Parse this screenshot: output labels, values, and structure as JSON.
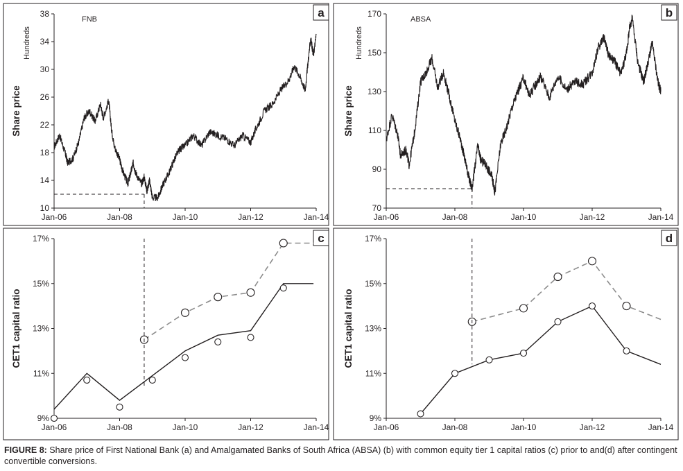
{
  "figure": {
    "caption_label": "FIGURE 8:",
    "caption_text": " Share price of First National Bank (a) and Amalgamated Banks of South Africa (ABSA) (b) with common equity tier 1 capital ratios (c) prior to and(d) after contingent convertible conversions."
  },
  "chart_data": [
    {
      "panel": "a",
      "type": "line",
      "annotation": "FNB",
      "ylabel": "Share price",
      "unit_label": "Hundreds",
      "x_ticks": [
        "Jan-06",
        "Jan-08",
        "Jan-10",
        "Jan-12",
        "Jan-14"
      ],
      "xlim": [
        "2006-01",
        "2014-01"
      ],
      "y_ticks": [
        10,
        14,
        18,
        22,
        26,
        30,
        34,
        38
      ],
      "ylim": [
        10,
        38
      ],
      "grid": false,
      "series": [
        {
          "values": [
            [
              "2006-01",
              18.8
            ],
            [
              "2006-03",
              20.5
            ],
            [
              "2006-05",
              18.0
            ],
            [
              "2006-06",
              16.5
            ],
            [
              "2006-08",
              17.2
            ],
            [
              "2006-10",
              19.5
            ],
            [
              "2006-12",
              23.0
            ],
            [
              "2007-02",
              24.0
            ],
            [
              "2007-04",
              22.5
            ],
            [
              "2007-06",
              25.0
            ],
            [
              "2007-07",
              23.0
            ],
            [
              "2007-09",
              25.5
            ],
            [
              "2007-10",
              21.5
            ],
            [
              "2007-11",
              19.0
            ],
            [
              "2008-01",
              17.0
            ],
            [
              "2008-02",
              15.5
            ],
            [
              "2008-04",
              13.5
            ],
            [
              "2008-05",
              15.0
            ],
            [
              "2008-06",
              16.5
            ],
            [
              "2008-07",
              15.0
            ],
            [
              "2008-09",
              13.5
            ],
            [
              "2008-10",
              14.5
            ],
            [
              "2008-11",
              12.5
            ],
            [
              "2008-12",
              14.0
            ],
            [
              "2009-01",
              11.5
            ],
            [
              "2009-03",
              11.5
            ],
            [
              "2009-05",
              13.5
            ],
            [
              "2009-07",
              15.0
            ],
            [
              "2009-09",
              17.0
            ],
            [
              "2009-11",
              18.5
            ],
            [
              "2010-01",
              19.0
            ],
            [
              "2010-04",
              20.5
            ],
            [
              "2010-07",
              19.0
            ],
            [
              "2010-10",
              21.0
            ],
            [
              "2011-01",
              20.5
            ],
            [
              "2011-04",
              20.0
            ],
            [
              "2011-07",
              19.0
            ],
            [
              "2011-10",
              20.5
            ],
            [
              "2012-01",
              19.5
            ],
            [
              "2012-03",
              21.5
            ],
            [
              "2012-06",
              24.0
            ],
            [
              "2012-09",
              25.0
            ],
            [
              "2012-12",
              27.0
            ],
            [
              "2013-03",
              28.5
            ],
            [
              "2013-05",
              30.5
            ],
            [
              "2013-07",
              29.0
            ],
            [
              "2013-09",
              27.0
            ],
            [
              "2013-10",
              31.0
            ],
            [
              "2013-11",
              34.5
            ],
            [
              "2013-12",
              32.0
            ],
            [
              "2014-01",
              35.0
            ]
          ]
        }
      ],
      "reference": {
        "x": "2008-10",
        "y": 12
      }
    },
    {
      "panel": "b",
      "type": "line",
      "annotation": "ABSA",
      "ylabel": "Share price",
      "unit_label": "Hundreds",
      "x_ticks": [
        "Jan-06",
        "Jan-08",
        "Jan-10",
        "Jan-12",
        "Jan-14"
      ],
      "xlim": [
        "2006-01",
        "2014-01"
      ],
      "y_ticks": [
        70,
        90,
        110,
        130,
        150,
        170
      ],
      "ylim": [
        70,
        170
      ],
      "grid": false,
      "series": [
        {
          "values": [
            [
              "2006-01",
              105
            ],
            [
              "2006-03",
              118
            ],
            [
              "2006-05",
              108
            ],
            [
              "2006-06",
              97
            ],
            [
              "2006-08",
              100
            ],
            [
              "2006-09",
              92
            ],
            [
              "2006-11",
              110
            ],
            [
              "2007-01",
              135
            ],
            [
              "2007-03",
              140
            ],
            [
              "2007-05",
              147
            ],
            [
              "2007-07",
              132
            ],
            [
              "2007-09",
              140
            ],
            [
              "2007-11",
              128
            ],
            [
              "2008-01",
              115
            ],
            [
              "2008-03",
              105
            ],
            [
              "2008-05",
              92
            ],
            [
              "2008-06",
              85
            ],
            [
              "2008-07",
              80
            ],
            [
              "2008-09",
              102
            ],
            [
              "2008-10",
              95
            ],
            [
              "2008-12",
              92
            ],
            [
              "2009-02",
              86
            ],
            [
              "2009-03",
              78
            ],
            [
              "2009-05",
              103
            ],
            [
              "2009-07",
              111
            ],
            [
              "2009-09",
              122
            ],
            [
              "2009-11",
              130
            ],
            [
              "2010-01",
              137
            ],
            [
              "2010-03",
              128
            ],
            [
              "2010-05",
              133
            ],
            [
              "2010-07",
              138
            ],
            [
              "2010-10",
              127
            ],
            [
              "2011-01",
              138
            ],
            [
              "2011-04",
              131
            ],
            [
              "2011-07",
              135
            ],
            [
              "2011-10",
              134
            ],
            [
              "2012-01",
              140
            ],
            [
              "2012-03",
              152
            ],
            [
              "2012-05",
              158
            ],
            [
              "2012-07",
              148
            ],
            [
              "2012-09",
              145
            ],
            [
              "2012-11",
              139
            ],
            [
              "2013-01",
              150
            ],
            [
              "2013-02",
              162
            ],
            [
              "2013-03",
              168
            ],
            [
              "2013-05",
              145
            ],
            [
              "2013-07",
              135
            ],
            [
              "2013-09",
              148
            ],
            [
              "2013-10",
              155
            ],
            [
              "2013-12",
              135
            ],
            [
              "2014-01",
              130
            ]
          ]
        }
      ],
      "reference": {
        "x": "2008-07",
        "y": 80
      }
    },
    {
      "panel": "c",
      "type": "line",
      "ylabel": "CET1 capital ratio",
      "x_ticks": [
        "Jan-06",
        "Jan-08",
        "Jan-10",
        "Jan-12",
        "Jan-14"
      ],
      "xlim": [
        "2006-01",
        "2014-01"
      ],
      "y_ticks": [
        "9%",
        "11%",
        "13%",
        "15%",
        "17%"
      ],
      "ylim": [
        9,
        17
      ],
      "grid": false,
      "series": [
        {
          "style": "solid-black",
          "values": [
            [
              "2006-01",
              9.4
            ],
            [
              "2007-01",
              11.0
            ],
            [
              "2008-01",
              9.8
            ],
            [
              "2010-01",
              12.0
            ],
            [
              "2011-01",
              12.7
            ],
            [
              "2012-01",
              12.9
            ],
            [
              "2013-01",
              15.0
            ],
            [
              "2013-12",
              15.0
            ]
          ]
        },
        {
          "style": "dashed-grey",
          "values": [
            [
              "2008-10",
              12.5
            ],
            [
              "2010-01",
              13.7
            ],
            [
              "2011-01",
              14.4
            ],
            [
              "2012-01",
              14.6
            ],
            [
              "2013-01",
              16.8
            ],
            [
              "2013-12",
              16.8
            ]
          ]
        },
        {
          "style": "points",
          "values": [
            [
              "2006-01",
              9.0
            ],
            [
              "2007-01",
              10.7
            ],
            [
              "2008-01",
              9.5
            ],
            [
              "2009-01",
              10.7
            ],
            [
              "2010-01",
              11.7
            ],
            [
              "2011-01",
              12.4
            ],
            [
              "2012-01",
              12.6
            ],
            [
              "2013-01",
              14.8
            ]
          ]
        },
        {
          "style": "points-on-dashed",
          "values": [
            [
              "2008-10",
              12.5
            ],
            [
              "2010-01",
              13.7
            ],
            [
              "2011-01",
              14.4
            ],
            [
              "2012-01",
              14.6
            ],
            [
              "2013-01",
              16.8
            ]
          ]
        }
      ],
      "reference": {
        "x": "2008-10",
        "y_from": 10.4,
        "y_to": 17
      }
    },
    {
      "panel": "d",
      "type": "line",
      "ylabel": "CET1 capital ratio",
      "x_ticks": [
        "Jan-06",
        "Jan-08",
        "Jan-10",
        "Jan-12",
        "Jan-14"
      ],
      "xlim": [
        "2006-01",
        "2014-01"
      ],
      "y_ticks": [
        "9%",
        "11%",
        "13%",
        "15%",
        "17%"
      ],
      "ylim": [
        9,
        17
      ],
      "grid": false,
      "series": [
        {
          "style": "solid-black",
          "values": [
            [
              "2007-01",
              9.2
            ],
            [
              "2008-01",
              11.0
            ],
            [
              "2009-01",
              11.6
            ],
            [
              "2010-01",
              11.9
            ],
            [
              "2011-01",
              13.3
            ],
            [
              "2012-01",
              14.0
            ],
            [
              "2013-01",
              12.0
            ],
            [
              "2014-01",
              11.4
            ]
          ]
        },
        {
          "style": "dashed-grey",
          "values": [
            [
              "2008-07",
              13.3
            ],
            [
              "2010-01",
              13.9
            ],
            [
              "2011-01",
              15.3
            ],
            [
              "2012-01",
              16.0
            ],
            [
              "2013-01",
              14.0
            ],
            [
              "2014-01",
              13.4
            ]
          ]
        },
        {
          "style": "points",
          "values": [
            [
              "2007-01",
              9.2
            ],
            [
              "2008-01",
              11.0
            ],
            [
              "2009-01",
              11.6
            ],
            [
              "2010-01",
              11.9
            ],
            [
              "2011-01",
              13.3
            ],
            [
              "2012-01",
              14.0
            ],
            [
              "2013-01",
              12.0
            ]
          ]
        },
        {
          "style": "points-on-dashed",
          "values": [
            [
              "2008-07",
              13.3
            ],
            [
              "2010-01",
              13.9
            ],
            [
              "2011-01",
              15.3
            ],
            [
              "2012-01",
              16.0
            ],
            [
              "2013-01",
              14.0
            ]
          ]
        }
      ],
      "reference": {
        "x": "2008-07",
        "y_from": 11.4,
        "y_to": 17
      }
    }
  ]
}
